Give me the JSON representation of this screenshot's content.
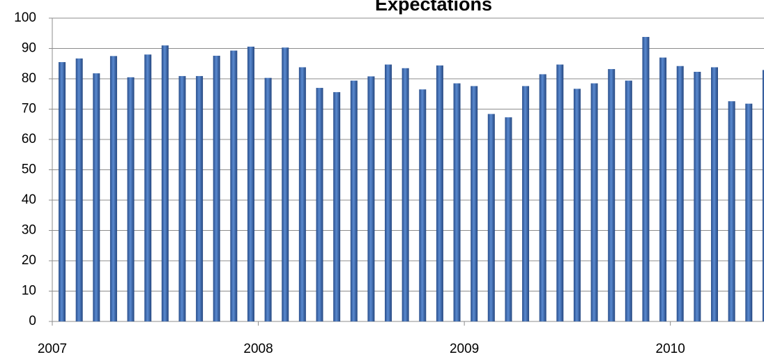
{
  "chart_data": {
    "type": "bar",
    "title": "Expectations",
    "categories": [
      "2007",
      null,
      null,
      null,
      null,
      null,
      null,
      null,
      null,
      null,
      null,
      null,
      "2008",
      null,
      null,
      null,
      null,
      null,
      null,
      null,
      null,
      null,
      null,
      null,
      "2009",
      null,
      null,
      null,
      null,
      null,
      null,
      null,
      null,
      null,
      null,
      null,
      "2010",
      null,
      null,
      null,
      null,
      null
    ],
    "values": [
      85.5,
      86.7,
      81.8,
      87.5,
      80.5,
      88,
      91,
      80.9,
      80.9,
      87.6,
      89.3,
      90.6,
      80.3,
      90.3,
      83.8,
      77,
      75.6,
      79.4,
      80.8,
      84.7,
      83.5,
      76.5,
      84.4,
      78.5,
      77.6,
      68.4,
      67.3,
      77.6,
      81.5,
      84.7,
      76.7,
      78.5,
      83.2,
      79.4,
      93.8,
      87,
      84.2,
      82.3,
      83.8,
      72.6,
      71.8,
      82.9
    ],
    "color": "#3f6db5",
    "ylim": [
      0,
      100
    ],
    "yticks": [
      0,
      10,
      20,
      30,
      40,
      50,
      60,
      70,
      80,
      90,
      100
    ],
    "grid": true
  }
}
